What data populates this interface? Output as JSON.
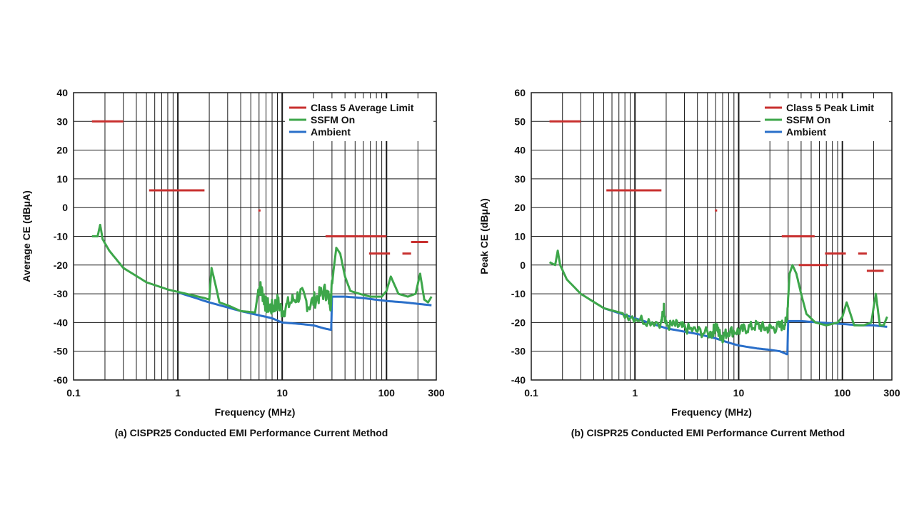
{
  "colors": {
    "limit": "#c8302f",
    "ssfm": "#3da64a",
    "ambient": "#2a6fc9",
    "grid": "#1a1a1a"
  },
  "chart_data": [
    {
      "id": "a",
      "type": "line",
      "x_scale": "log",
      "xlim": [
        0.1,
        300
      ],
      "ylim": [
        -60,
        40
      ],
      "xticks": [
        {
          "value": 0.1,
          "label": "0.1"
        },
        {
          "value": 1,
          "label": "1"
        },
        {
          "value": 10,
          "label": "10"
        },
        {
          "value": 100,
          "label": "100"
        },
        {
          "value": 300,
          "label": "300"
        }
      ],
      "yticks": [
        {
          "value": 40,
          "label": "40"
        },
        {
          "value": 30,
          "label": "30"
        },
        {
          "value": 20,
          "label": "20"
        },
        {
          "value": 10,
          "label": "10"
        },
        {
          "value": 0,
          "label": "0"
        },
        {
          "value": -10,
          "label": "-10"
        },
        {
          "value": -20,
          "label": "-20"
        },
        {
          "value": -30,
          "label": "-30"
        },
        {
          "value": -40,
          "label": "-40"
        },
        {
          "value": -50,
          "label": "-50"
        },
        {
          "value": -60,
          "label": "-60"
        }
      ],
      "xlabel": "Frequency (MHz)",
      "ylabel": "Average CE (dBμA)",
      "caption": "(a) CISPR25 Conducted EMI Performance Current Method",
      "legend": [
        "Class 5 Average Limit",
        "SSFM On",
        "Ambient"
      ],
      "legend_position": "top-right",
      "grid": true,
      "series": [
        {
          "name": "Class 5 Average Limit",
          "type": "segments",
          "segments": [
            {
              "x": [
                0.15,
                0.3
              ],
              "y": 30
            },
            {
              "x": [
                0.53,
                1.8
              ],
              "y": 6
            },
            {
              "x": [
                5.9,
                6.2
              ],
              "y": -1
            },
            {
              "x": [
                26,
                54
              ],
              "y": -10
            },
            {
              "x": [
                54,
                100
              ],
              "y": -10
            },
            {
              "x": [
                68,
                108
              ],
              "y": -16
            },
            {
              "x": [
                142,
                172
              ],
              "y": -16
            },
            {
              "x": [
                172,
                250
              ],
              "y": -12
            }
          ]
        },
        {
          "name": "SSFM On",
          "x": [
            0.15,
            0.17,
            0.18,
            0.19,
            0.22,
            0.3,
            0.5,
            0.8,
            1.2,
            1.8,
            2.0,
            2.1,
            2.3,
            2.5,
            3.0,
            4.0,
            5.5,
            6.0,
            6.5,
            7.0,
            8.0,
            9.0,
            10,
            12,
            15,
            18,
            22,
            26,
            29,
            31,
            33,
            36,
            40,
            45,
            55,
            70,
            90,
            100,
            110,
            130,
            160,
            190,
            210,
            230,
            250,
            270
          ],
          "y": [
            -10,
            -10,
            -6,
            -11,
            -15,
            -21,
            -26,
            -28.5,
            -30,
            -31.5,
            -32,
            -21,
            -27,
            -33,
            -34,
            -36,
            -36.5,
            -27,
            -30,
            -34,
            -35,
            -33,
            -36,
            -33,
            -30,
            -34,
            -31,
            -29,
            -33,
            -22,
            -14,
            -16,
            -24,
            -29,
            -30,
            -31,
            -31,
            -29,
            -24,
            -30,
            -31,
            -30,
            -23,
            -32,
            -33,
            -31
          ],
          "noise": 3,
          "noise_band": [
            5.8,
            30
          ]
        },
        {
          "name": "Ambient",
          "x": [
            1.0,
            2.0,
            4.0,
            6.0,
            8.0,
            10,
            15,
            20,
            25,
            29,
            29.5,
            30,
            40,
            60,
            100,
            150,
            200,
            270
          ],
          "y": [
            -29.5,
            -33,
            -36,
            -37.5,
            -38.5,
            -40,
            -40.5,
            -41,
            -42,
            -42.5,
            -42.5,
            -31,
            -31,
            -31.5,
            -32.5,
            -33,
            -33.5,
            -34
          ]
        }
      ]
    },
    {
      "id": "b",
      "type": "line",
      "x_scale": "log",
      "xlim": [
        0.1,
        300
      ],
      "ylim": [
        -40,
        60
      ],
      "xticks": [
        {
          "value": 0.1,
          "label": "0.1"
        },
        {
          "value": 1,
          "label": "1"
        },
        {
          "value": 10,
          "label": "10"
        },
        {
          "value": 100,
          "label": "100"
        },
        {
          "value": 300,
          "label": "300"
        }
      ],
      "yticks": [
        {
          "value": 60,
          "label": "60"
        },
        {
          "value": 50,
          "label": "50"
        },
        {
          "value": 40,
          "label": "40"
        },
        {
          "value": 30,
          "label": "30"
        },
        {
          "value": 20,
          "label": "20"
        },
        {
          "value": 10,
          "label": "10"
        },
        {
          "value": 0,
          "label": "0"
        },
        {
          "value": -10,
          "label": "-10"
        },
        {
          "value": -20,
          "label": "-20"
        },
        {
          "value": -30,
          "label": "-30"
        },
        {
          "value": -40,
          "label": "-40"
        }
      ],
      "xlabel": "Frequency (MHz)",
      "ylabel": "Peak CE (dBμA)",
      "caption": "(b) CISPR25 Conducted EMI Performance Current Method",
      "legend": [
        "Class 5 Peak Limit",
        "SSFM On",
        "Ambient"
      ],
      "legend_position": "top-right",
      "grid": true,
      "series": [
        {
          "name": "Class 5 Peak Limit",
          "type": "segments",
          "segments": [
            {
              "x": [
                0.15,
                0.3
              ],
              "y": 50
            },
            {
              "x": [
                0.53,
                1.8
              ],
              "y": 26
            },
            {
              "x": [
                5.9,
                6.2
              ],
              "y": 19
            },
            {
              "x": [
                26,
                54
              ],
              "y": 10
            },
            {
              "x": [
                38,
                73
              ],
              "y": 0
            },
            {
              "x": [
                68,
                108
              ],
              "y": 4
            },
            {
              "x": [
                142,
                172
              ],
              "y": 4
            },
            {
              "x": [
                172,
                250
              ],
              "y": -2
            }
          ]
        },
        {
          "name": "SSFM On",
          "x": [
            0.15,
            0.17,
            0.18,
            0.19,
            0.22,
            0.3,
            0.5,
            0.8,
            1.2,
            1.8,
            1.9,
            2.0,
            2.5,
            3.0,
            4.0,
            5.5,
            6.0,
            6.5,
            7.0,
            8.0,
            10,
            12,
            15,
            18,
            22,
            26,
            29,
            31,
            33,
            36,
            40,
            45,
            55,
            70,
            90,
            100,
            110,
            130,
            160,
            190,
            210,
            230,
            250,
            270
          ],
          "y": [
            1,
            0,
            5,
            0,
            -5,
            -10,
            -15,
            -17,
            -19,
            -20,
            -15,
            -21,
            -21,
            -22,
            -23,
            -24,
            -21,
            -24,
            -25,
            -23,
            -23,
            -22,
            -21,
            -22,
            -22,
            -21,
            -20,
            -3,
            0,
            -3,
            -10,
            -17,
            -20,
            -21,
            -20,
            -18,
            -13,
            -21,
            -21,
            -20,
            -10,
            -21,
            -21,
            -18
          ],
          "noise": 2,
          "noise_band": [
            0.8,
            30
          ]
        },
        {
          "name": "Ambient",
          "x": [
            0.5,
            1.0,
            2.0,
            4.0,
            6.0,
            8.0,
            10,
            15,
            20,
            25,
            29,
            29.5,
            30,
            40,
            60,
            100,
            150,
            200,
            270
          ],
          "y": [
            -15,
            -18.5,
            -22,
            -24,
            -25.5,
            -27,
            -28,
            -29,
            -29.5,
            -30,
            -31,
            -31,
            -19.5,
            -19.5,
            -20,
            -20.5,
            -21,
            -21,
            -21.5
          ]
        }
      ]
    }
  ]
}
